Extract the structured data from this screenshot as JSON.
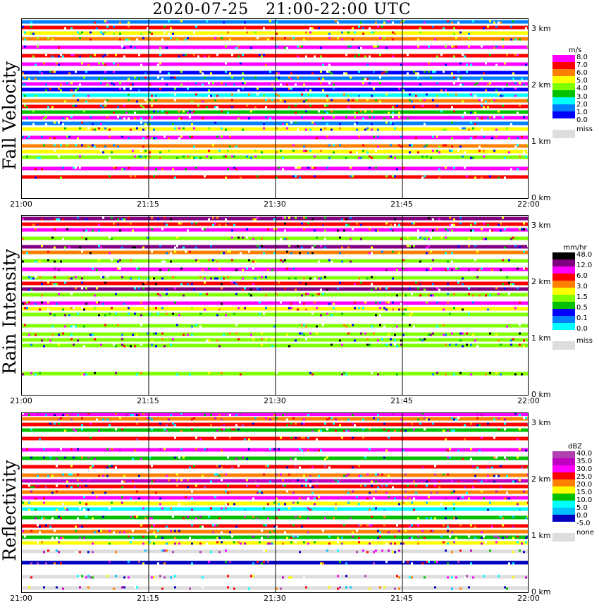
{
  "title": "2020-07-25   21:00-22:00 UTC",
  "x_ticks": [
    "21:00",
    "21:15",
    "21:30",
    "21:45",
    "22:00"
  ],
  "y_ticks": [
    "0 km",
    "1 km",
    "2 km",
    "3 km"
  ],
  "chart_data": [
    {
      "type": "heatmap",
      "title": "Fall Velocity",
      "xlabel": "",
      "ylabel": "",
      "x_range": [
        "21:00",
        "22:00"
      ],
      "y_range_km": [
        0,
        3.2
      ],
      "colorbar": {
        "unit": "m/s",
        "levels": [
          "8.0",
          "7.0",
          "6.0",
          "5.0",
          "4.0",
          "3.0",
          "2.0",
          "1.0",
          "0.0"
        ],
        "colors": [
          "#ff00ff",
          "#ff0000",
          "#ff8000",
          "#ffff00",
          "#80ff00",
          "#00c000",
          "#00ffff",
          "#0080ff",
          "#0000ff",
          "#ffffff"
        ],
        "missing_label": "miss",
        "missing_color": "#dddddd"
      },
      "bands": [
        {
          "km": 0.4,
          "value": 7.5
        },
        {
          "km": 0.55,
          "value": 8.5
        },
        {
          "km": 0.75,
          "value": 4.5
        },
        {
          "km": 0.85,
          "value": 5.5
        },
        {
          "km": 0.95,
          "value": 6.5
        },
        {
          "km": 1.1,
          "value": 8.5
        },
        {
          "km": 1.25,
          "value": 5.0
        },
        {
          "km": 1.35,
          "value": 1.5
        },
        {
          "km": 1.45,
          "value": 8.5
        },
        {
          "km": 1.55,
          "value": 3.5
        },
        {
          "km": 1.65,
          "value": 7.5
        },
        {
          "km": 1.75,
          "value": 6.5
        },
        {
          "km": 1.85,
          "value": 2.5
        },
        {
          "km": 1.95,
          "value": 0.5
        },
        {
          "km": 2.05,
          "value": 8.5
        },
        {
          "km": 2.15,
          "value": 1.5
        },
        {
          "km": 2.25,
          "value": 0.5
        },
        {
          "km": 2.4,
          "value": 8.5
        },
        {
          "km": 2.55,
          "value": 7.5
        },
        {
          "km": 2.7,
          "value": 8.5
        },
        {
          "km": 2.85,
          "value": 6.5
        },
        {
          "km": 2.95,
          "value": 5.5
        },
        {
          "km": 3.05,
          "value": 7.5
        },
        {
          "km": 3.15,
          "value": 1.5
        }
      ]
    },
    {
      "type": "heatmap",
      "title": "Rain Intensity",
      "xlabel": "",
      "ylabel": "",
      "x_range": [
        "21:00",
        "22:00"
      ],
      "y_range_km": [
        0,
        3.2
      ],
      "colorbar": {
        "unit": "mm/hr",
        "levels": [
          "48.0",
          "12.0",
          "6.0",
          "3.0",
          "1.5",
          "0.5",
          "0.1",
          "0.0"
        ],
        "colors": [
          "#000000",
          "#800080",
          "#ff00ff",
          "#ff0000",
          "#ff8000",
          "#ffff00",
          "#80ff00",
          "#00c000",
          "#0000ff",
          "#0080ff",
          "#00ffff",
          "#ffffff"
        ],
        "missing_label": "miss",
        "missing_color": "#dddddd"
      },
      "bands": [
        {
          "km": 0.4,
          "value": 0.2
        },
        {
          "km": 0.9,
          "value": 0.3
        },
        {
          "km": 1.0,
          "value": 0.1
        },
        {
          "km": 1.1,
          "value": 0.4
        },
        {
          "km": 1.25,
          "value": 0.2
        },
        {
          "km": 1.45,
          "value": 0.1
        },
        {
          "km": 1.55,
          "value": 1.0
        },
        {
          "km": 1.65,
          "value": 8.0
        },
        {
          "km": 1.8,
          "value": 0.3
        },
        {
          "km": 1.9,
          "value": 30.0
        },
        {
          "km": 2.0,
          "value": 4.0
        },
        {
          "km": 2.1,
          "value": 0.2
        },
        {
          "km": 2.25,
          "value": 8.0
        },
        {
          "km": 2.4,
          "value": 0.1
        },
        {
          "km": 2.55,
          "value": 2.0
        },
        {
          "km": 2.65,
          "value": 20.0
        },
        {
          "km": 2.8,
          "value": 0.3
        },
        {
          "km": 2.95,
          "value": 8.0
        },
        {
          "km": 3.05,
          "value": 4.0
        },
        {
          "km": 3.15,
          "value": 12.0
        }
      ]
    },
    {
      "type": "heatmap",
      "title": "Reflectivity",
      "xlabel": "",
      "ylabel": "",
      "x_range": [
        "21:00",
        "22:00"
      ],
      "y_range_km": [
        0,
        3.2
      ],
      "colorbar": {
        "unit": "dBZ",
        "levels": [
          "40.0",
          "35.0",
          "30.0",
          "25.0",
          "20.0",
          "15.0",
          "10.0",
          "5.0",
          "0.0",
          "-5.0"
        ],
        "colors": [
          "#b040b0",
          "#c000c0",
          "#ff00ff",
          "#ff0000",
          "#ff8000",
          "#ffff00",
          "#00c000",
          "#00ffff",
          "#00c0ff",
          "#0000c0",
          "#ffffff"
        ],
        "missing_label": "none",
        "missing_color": "#dddddd"
      },
      "bands": [
        {
          "km": 0.1,
          "value": null
        },
        {
          "km": 0.3,
          "value": null
        },
        {
          "km": 0.55,
          "value": -2.0
        },
        {
          "km": 0.75,
          "value": null
        },
        {
          "km": 0.9,
          "value": 18.0
        },
        {
          "km": 1.0,
          "value": 12.0
        },
        {
          "km": 1.1,
          "value": 22.0
        },
        {
          "km": 1.2,
          "value": 28.0
        },
        {
          "km": 1.35,
          "value": 10.0
        },
        {
          "km": 1.5,
          "value": 8.0
        },
        {
          "km": 1.6,
          "value": 15.0
        },
        {
          "km": 1.7,
          "value": 32.0
        },
        {
          "km": 1.8,
          "value": 20.0
        },
        {
          "km": 1.9,
          "value": 28.0
        },
        {
          "km": 2.0,
          "value": 37.0
        },
        {
          "km": 2.1,
          "value": 22.0
        },
        {
          "km": 2.25,
          "value": 28.0
        },
        {
          "km": 2.4,
          "value": 10.0
        },
        {
          "km": 2.55,
          "value": 33.0
        },
        {
          "km": 2.75,
          "value": 27.0
        },
        {
          "km": 2.9,
          "value": 12.0
        },
        {
          "km": 3.0,
          "value": 28.0
        },
        {
          "km": 3.1,
          "value": 22.0
        },
        {
          "km": 3.18,
          "value": 30.0
        }
      ]
    }
  ]
}
